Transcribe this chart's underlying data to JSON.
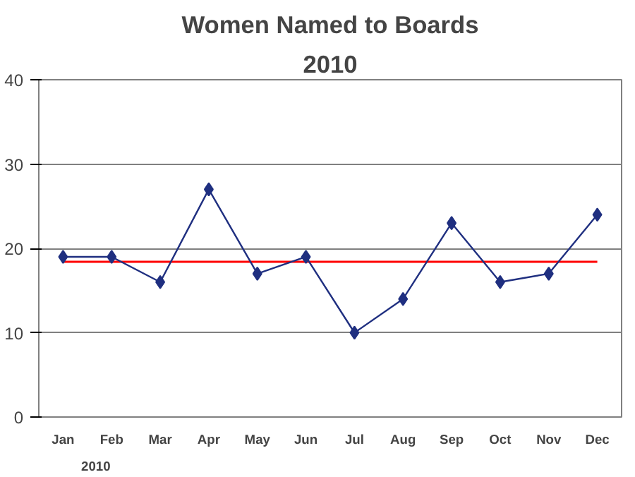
{
  "chart_data": {
    "type": "line",
    "title": "Women Named to Boards",
    "subtitle": "2010",
    "categories": [
      "Jan",
      "Feb",
      "Mar",
      "Apr",
      "May",
      "Jun",
      "Jul",
      "Aug",
      "Sep",
      "Oct",
      "Nov",
      "Dec"
    ],
    "series": [
      {
        "color": "#1f2f80",
        "values": [
          19,
          19,
          16,
          27,
          17,
          19,
          10,
          14,
          23,
          16,
          17,
          24
        ]
      }
    ],
    "ylim": [
      0,
      40
    ],
    "yticks": [
      0,
      10,
      20,
      30,
      40
    ],
    "grid": "y",
    "marker": "diamond",
    "ref_lines": [
      {
        "axis": "y",
        "value": 18.4,
        "color": "#ff0000"
      }
    ],
    "annotations": [
      "2010"
    ]
  }
}
